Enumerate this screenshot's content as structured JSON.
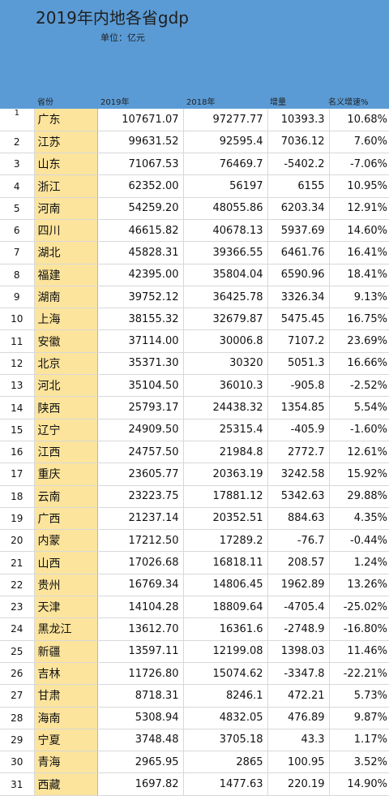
{
  "header": {
    "title": "2019年内地各省gdp",
    "unit": "单位：亿元"
  },
  "columns": {
    "province": "省份",
    "y2019": "2019年",
    "y2018": "2018年",
    "increase": "增量",
    "growth": "名义增速%"
  },
  "rows": [
    {
      "rank": "1",
      "province": "广东",
      "y2019": "107671.07",
      "y2018": "97277.77",
      "increase": "10393.3",
      "growth": "10.68%"
    },
    {
      "rank": "2",
      "province": "江苏",
      "y2019": "99631.52",
      "y2018": "92595.4",
      "increase": "7036.12",
      "growth": "7.60%"
    },
    {
      "rank": "3",
      "province": "山东",
      "y2019": "71067.53",
      "y2018": "76469.7",
      "increase": "-5402.2",
      "growth": "-7.06%"
    },
    {
      "rank": "4",
      "province": "浙江",
      "y2019": "62352.00",
      "y2018": "56197",
      "increase": "6155",
      "growth": "10.95%"
    },
    {
      "rank": "5",
      "province": "河南",
      "y2019": "54259.20",
      "y2018": "48055.86",
      "increase": "6203.34",
      "growth": "12.91%"
    },
    {
      "rank": "6",
      "province": "四川",
      "y2019": "46615.82",
      "y2018": "40678.13",
      "increase": "5937.69",
      "growth": "14.60%"
    },
    {
      "rank": "7",
      "province": "湖北",
      "y2019": "45828.31",
      "y2018": "39366.55",
      "increase": "6461.76",
      "growth": "16.41%"
    },
    {
      "rank": "8",
      "province": "福建",
      "y2019": "42395.00",
      "y2018": "35804.04",
      "increase": "6590.96",
      "growth": "18.41%"
    },
    {
      "rank": "9",
      "province": "湖南",
      "y2019": "39752.12",
      "y2018": "36425.78",
      "increase": "3326.34",
      "growth": "9.13%"
    },
    {
      "rank": "10",
      "province": "上海",
      "y2019": "38155.32",
      "y2018": "32679.87",
      "increase": "5475.45",
      "growth": "16.75%"
    },
    {
      "rank": "11",
      "province": "安徽",
      "y2019": "37114.00",
      "y2018": "30006.8",
      "increase": "7107.2",
      "growth": "23.69%"
    },
    {
      "rank": "12",
      "province": "北京",
      "y2019": "35371.30",
      "y2018": "30320",
      "increase": "5051.3",
      "growth": "16.66%"
    },
    {
      "rank": "13",
      "province": "河北",
      "y2019": "35104.50",
      "y2018": "36010.3",
      "increase": "-905.8",
      "growth": "-2.52%"
    },
    {
      "rank": "14",
      "province": "陕西",
      "y2019": "25793.17",
      "y2018": "24438.32",
      "increase": "1354.85",
      "growth": "5.54%"
    },
    {
      "rank": "15",
      "province": "辽宁",
      "y2019": "24909.50",
      "y2018": "25315.4",
      "increase": "-405.9",
      "growth": "-1.60%"
    },
    {
      "rank": "16",
      "province": "江西",
      "y2019": "24757.50",
      "y2018": "21984.8",
      "increase": "2772.7",
      "growth": "12.61%"
    },
    {
      "rank": "17",
      "province": "重庆",
      "y2019": "23605.77",
      "y2018": "20363.19",
      "increase": "3242.58",
      "growth": "15.92%"
    },
    {
      "rank": "18",
      "province": "云南",
      "y2019": "23223.75",
      "y2018": "17881.12",
      "increase": "5342.63",
      "growth": "29.88%"
    },
    {
      "rank": "19",
      "province": "广西",
      "y2019": "21237.14",
      "y2018": "20352.51",
      "increase": "884.63",
      "growth": "4.35%"
    },
    {
      "rank": "20",
      "province": "内蒙",
      "y2019": "17212.50",
      "y2018": "17289.2",
      "increase": "-76.7",
      "growth": "-0.44%"
    },
    {
      "rank": "21",
      "province": "山西",
      "y2019": "17026.68",
      "y2018": "16818.11",
      "increase": "208.57",
      "growth": "1.24%"
    },
    {
      "rank": "22",
      "province": "贵州",
      "y2019": "16769.34",
      "y2018": "14806.45",
      "increase": "1962.89",
      "growth": "13.26%"
    },
    {
      "rank": "23",
      "province": "天津",
      "y2019": "14104.28",
      "y2018": "18809.64",
      "increase": "-4705.4",
      "growth": "-25.02%"
    },
    {
      "rank": "24",
      "province": "黑龙江",
      "y2019": "13612.70",
      "y2018": "16361.6",
      "increase": "-2748.9",
      "growth": "-16.80%"
    },
    {
      "rank": "25",
      "province": "新疆",
      "y2019": "13597.11",
      "y2018": "12199.08",
      "increase": "1398.03",
      "growth": "11.46%"
    },
    {
      "rank": "26",
      "province": "吉林",
      "y2019": "11726.80",
      "y2018": "15074.62",
      "increase": "-3347.8",
      "growth": "-22.21%"
    },
    {
      "rank": "27",
      "province": "甘肃",
      "y2019": "8718.31",
      "y2018": "8246.1",
      "increase": "472.21",
      "growth": "5.73%"
    },
    {
      "rank": "28",
      "province": "海南",
      "y2019": "5308.94",
      "y2018": "4832.05",
      "increase": "476.89",
      "growth": "9.87%"
    },
    {
      "rank": "29",
      "province": "宁夏",
      "y2019": "3748.48",
      "y2018": "3705.18",
      "increase": "43.3",
      "growth": "1.17%"
    },
    {
      "rank": "30",
      "province": "青海",
      "y2019": "2965.95",
      "y2018": "2865",
      "increase": "100.95",
      "growth": "3.52%"
    },
    {
      "rank": "31",
      "province": "西藏",
      "y2019": "1697.82",
      "y2018": "1477.63",
      "increase": "220.19",
      "growth": "14.90%"
    }
  ]
}
